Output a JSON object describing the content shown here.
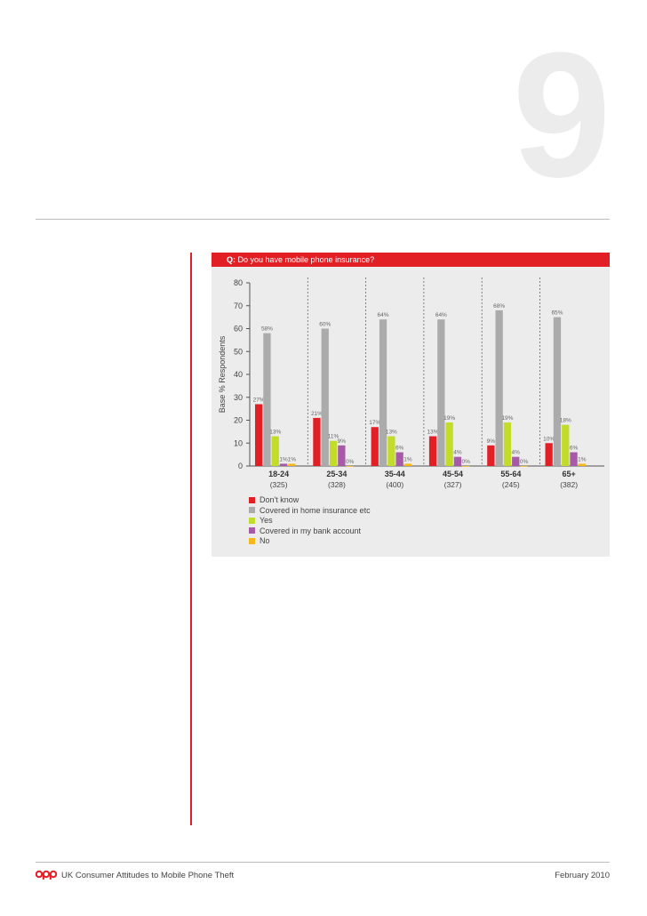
{
  "page": {
    "number": "9",
    "footer_title": "UK Consumer Attitudes to Mobile Phone Theft",
    "footer_date": "February 2010",
    "logo_text": "cpp"
  },
  "question": {
    "prefix": "Q:",
    "text": "Do you have mobile phone insurance?"
  },
  "colors": {
    "dont_know": "#e31f26",
    "covered_home": "#ababab",
    "yes": "#c3dc2a",
    "covered_bank": "#a75aa8",
    "no": "#f6b719"
  },
  "chart_data": {
    "type": "bar",
    "ylabel": "Base % Respondents",
    "ylim": [
      0,
      80
    ],
    "yticks": [
      "0",
      "10",
      "20",
      "30",
      "40",
      "50",
      "60",
      "70",
      "80"
    ],
    "categories": [
      "18-24",
      "25-34",
      "35-44",
      "45-54",
      "55-64",
      "65+"
    ],
    "category_bases": [
      "(325)",
      "(328)",
      "(400)",
      "(327)",
      "(245)",
      "(382)"
    ],
    "series": [
      {
        "name": "Don't know",
        "values": [
          27,
          21,
          17,
          13,
          9,
          10
        ],
        "labels": [
          "27%",
          "21%",
          "17%",
          "13%",
          "9%",
          "10%"
        ]
      },
      {
        "name": "Covered in home insurance etc",
        "values": [
          58,
          60,
          64,
          64,
          68,
          65
        ],
        "labels": [
          "58%",
          "60%",
          "64%",
          "64%",
          "68%",
          "65%"
        ]
      },
      {
        "name": "Yes",
        "values": [
          13,
          11,
          13,
          19,
          19,
          18
        ],
        "labels": [
          "13%",
          "11%",
          "13%",
          "19%",
          "19%",
          "18%"
        ]
      },
      {
        "name": "Covered in my bank account",
        "values": [
          1,
          9,
          6,
          4,
          4,
          6
        ],
        "labels": [
          "1%",
          "9%",
          "6%",
          "4%",
          "4%",
          "6%"
        ]
      },
      {
        "name": "No",
        "values": [
          1,
          0,
          1,
          0,
          0,
          1
        ],
        "labels": [
          "1%",
          "0%",
          "1%",
          "0%",
          "0%",
          "1%"
        ]
      }
    ]
  }
}
